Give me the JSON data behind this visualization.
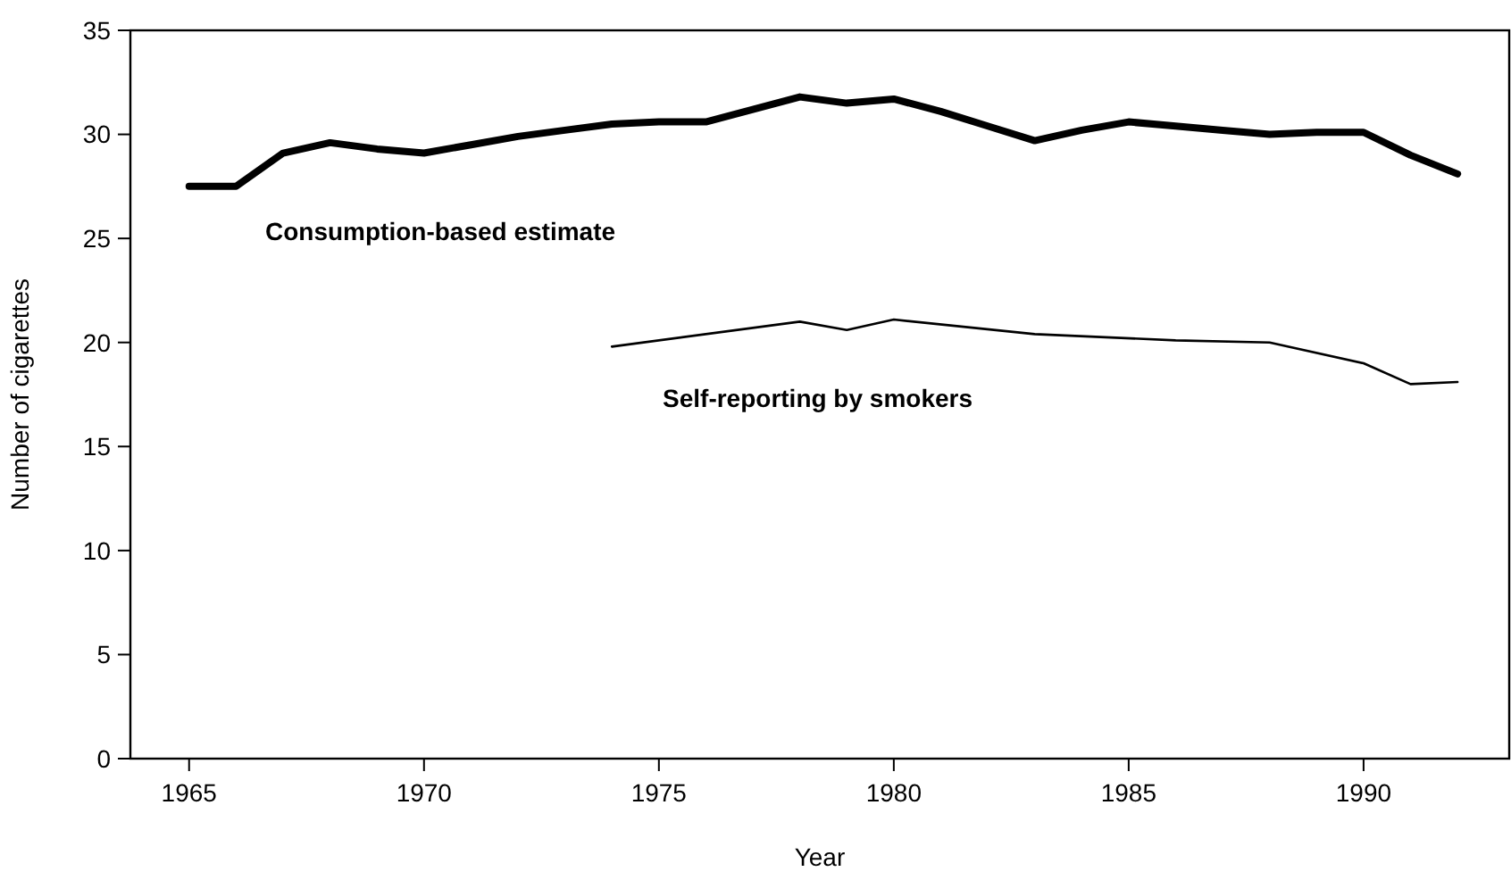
{
  "chart_data": {
    "type": "line",
    "xlabel": "Year",
    "ylabel": "Number of cigarettes",
    "xlim": [
      1963.75,
      1993.1
    ],
    "ylim": [
      0,
      35
    ],
    "xticks": [
      1965,
      1970,
      1975,
      1980,
      1985,
      1990
    ],
    "yticks": [
      0,
      5,
      10,
      15,
      20,
      25,
      30,
      35
    ],
    "grid": false,
    "series": [
      {
        "name": "Consumption-based estimate",
        "color": "#000000",
        "x": [
          1965,
          1966,
          1967,
          1968,
          1969,
          1970,
          1971,
          1972,
          1973,
          1974,
          1975,
          1976,
          1977,
          1978,
          1979,
          1980,
          1981,
          1982,
          1983,
          1984,
          1985,
          1986,
          1987,
          1988,
          1989,
          1990,
          1991,
          1992
        ],
        "values": [
          27.5,
          27.5,
          29.1,
          29.6,
          29.3,
          29.1,
          29.5,
          29.9,
          30.2,
          30.5,
          30.6,
          30.6,
          31.2,
          31.8,
          31.5,
          31.7,
          31.1,
          30.4,
          29.7,
          30.2,
          30.6,
          30.4,
          30.2,
          30.0,
          30.1,
          30.1,
          29.0,
          28.1
        ]
      },
      {
        "name": "Self-reporting by smokers",
        "color": "#000000",
        "x": [
          1974,
          1978,
          1979,
          1980,
          1983,
          1986,
          1988,
          1990,
          1991,
          1992
        ],
        "values": [
          19.8,
          21.0,
          20.6,
          21.1,
          20.4,
          20.1,
          20.0,
          19.0,
          18.0,
          18.1
        ]
      }
    ]
  }
}
